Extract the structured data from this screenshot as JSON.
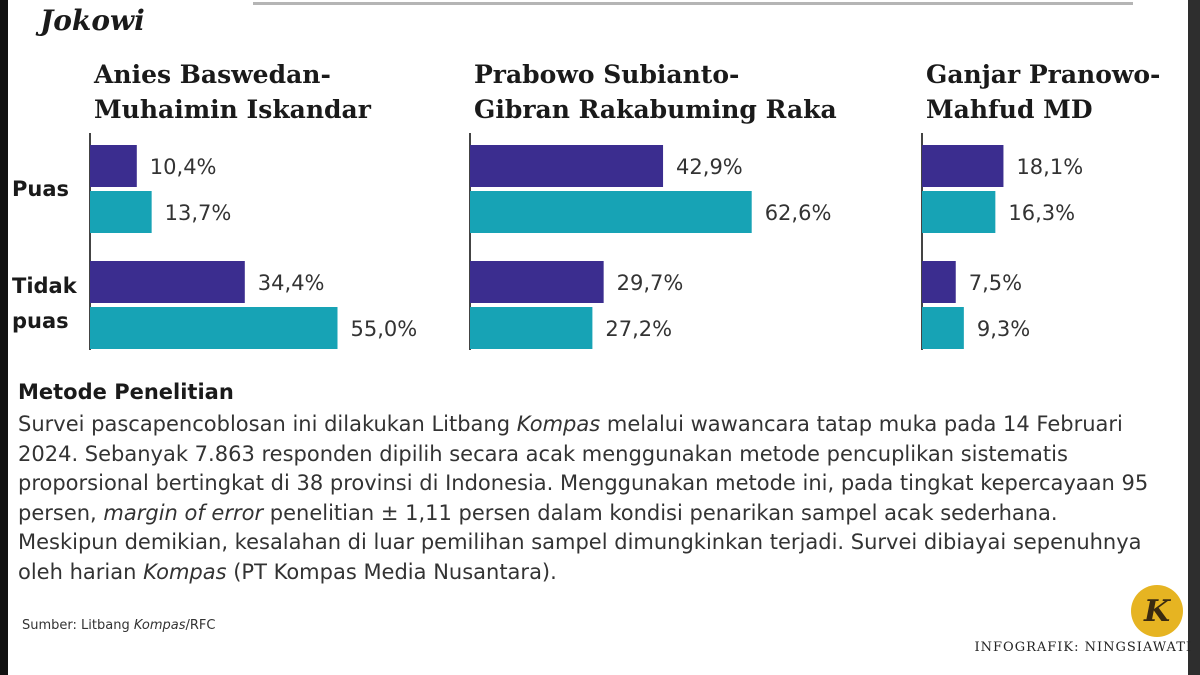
{
  "header": {
    "title_fragment": "Jokowi"
  },
  "colors": {
    "puas": "#3b2d8f",
    "tidak_puas": "#17a3b5",
    "axis": "#444444",
    "logo": "#e6b422"
  },
  "chart_data": {
    "type": "bar",
    "orientation": "horizontal",
    "row_labels": [
      [
        "Puas"
      ],
      [
        "Tidak",
        "puas"
      ]
    ],
    "panels": [
      {
        "title_lines": [
          "Anies Baswedan-",
          "Muhaimin Iskandar"
        ],
        "groups": [
          {
            "values": [
              10.4,
              13.7
            ],
            "labels": [
              "10,4%",
              "13,7%"
            ]
          },
          {
            "values": [
              34.4,
              55.0
            ],
            "labels": [
              "34,4%",
              "55,0%"
            ]
          }
        ]
      },
      {
        "title_lines": [
          "Prabowo Subianto-",
          "Gibran Rakabuming Raka"
        ],
        "groups": [
          {
            "values": [
              42.9,
              62.6
            ],
            "labels": [
              "42,9%",
              "62,6%"
            ]
          },
          {
            "values": [
              29.7,
              27.2
            ],
            "labels": [
              "29,7%",
              "27,2%"
            ]
          }
        ]
      },
      {
        "title_lines": [
          "Ganjar Pranowo-",
          "Mahfud MD"
        ],
        "groups": [
          {
            "values": [
              18.1,
              16.3
            ],
            "labels": [
              "18,1%",
              "16,3%"
            ]
          },
          {
            "values": [
              7.5,
              9.3
            ],
            "labels": [
              "7,5%",
              "9,3%"
            ]
          }
        ]
      }
    ],
    "grid": false,
    "legend": "none"
  },
  "method": {
    "heading": "Metode Penelitian",
    "p1": "Survei pascapencoblosan ini dilakukan Litbang ",
    "em1": "Kompas",
    "p2": " melalui wawancara tatap muka pada 14 Februari 2024. Sebanyak 7.863 responden dipilih secara acak menggunakan metode pencuplikan sistematis proporsional bertingkat di 38 provinsi di Indonesia. Menggunakan metode ini, pada tingkat kepercayaan 95 persen, ",
    "em2": "margin of error",
    "p3": " penelitian ± 1,11 persen dalam kondisi penarikan sampel acak sederhana. Meskipun demikian, kesalahan di luar pemilihan sampel dimungkinkan terjadi. Survei dibiayai sepenuhnya oleh harian ",
    "em3": "Kompas",
    "p4": " (PT Kompas Media Nusantara)."
  },
  "footer": {
    "source_prefix": "Sumber: Litbang ",
    "source_em": "Kompas",
    "source_suffix": "/RFC",
    "credit": "INFOGRAFIK: NINGSIAWATI",
    "logo_letter": "K"
  }
}
